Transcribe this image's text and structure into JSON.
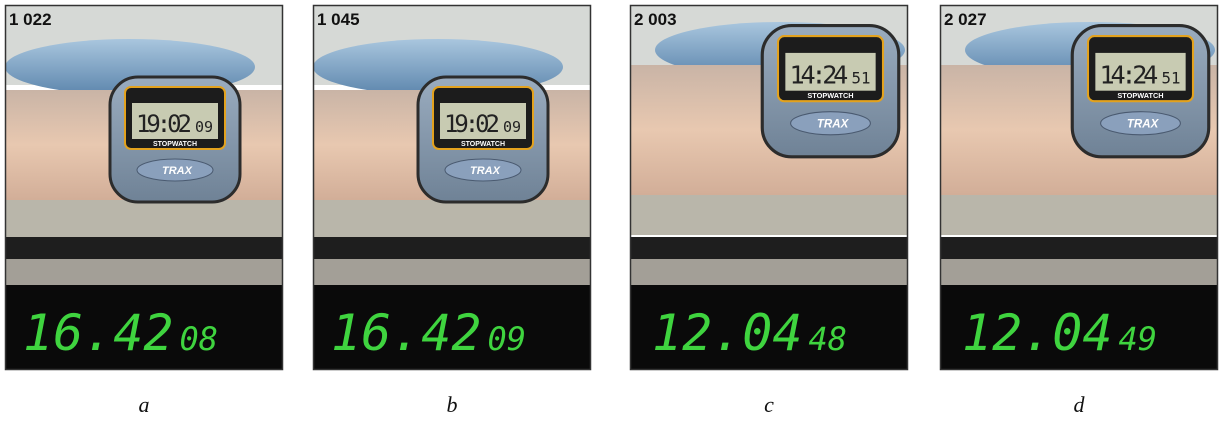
{
  "figure": {
    "brand": "TRAX",
    "watch_label": "STOPWATCH",
    "panels": [
      {
        "frame": "1 022",
        "watch_main": "19:02",
        "watch_sub": "09",
        "clock_main": "16.42",
        "clock_sub": "08",
        "caption": "a"
      },
      {
        "frame": "1 045",
        "watch_main": "19:02",
        "watch_sub": "09",
        "clock_main": "16.42",
        "clock_sub": "09",
        "caption": "b"
      },
      {
        "frame": "2 003",
        "watch_main": "14:24",
        "watch_sub": "51",
        "clock_main": "12.04",
        "clock_sub": "48",
        "caption": "c"
      },
      {
        "frame": "2 027",
        "watch_main": "14:24",
        "watch_sub": "51",
        "clock_main": "12.04",
        "clock_sub": "49",
        "caption": "d"
      }
    ]
  }
}
